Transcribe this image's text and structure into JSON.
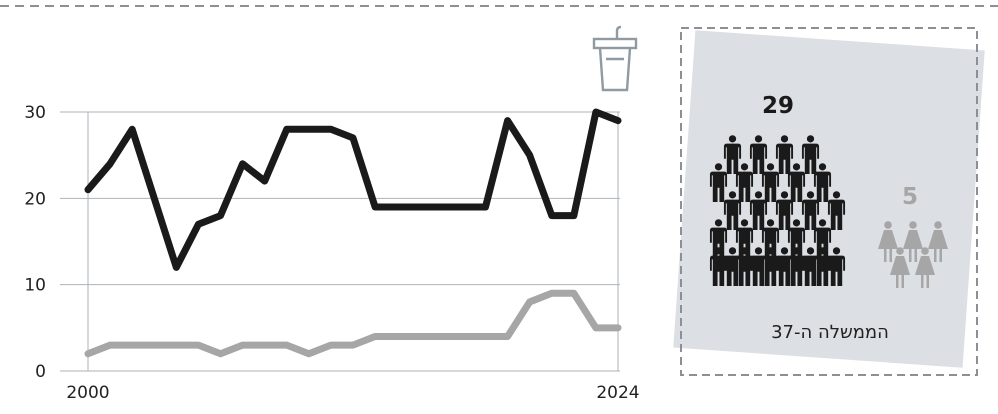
{
  "chart_data": {
    "type": "line",
    "x": [
      2000,
      2001,
      2002,
      2003,
      2004,
      2005,
      2006,
      2007,
      2008,
      2009,
      2010,
      2011,
      2012,
      2013,
      2014,
      2015,
      2016,
      2017,
      2018,
      2019,
      2020,
      2021,
      2022,
      2023,
      2024
    ],
    "series": [
      {
        "color": "#1a1a1a",
        "values": [
          21,
          24,
          28,
          20,
          12,
          17,
          18,
          24,
          22,
          28,
          28,
          28,
          27,
          19,
          19,
          19,
          19,
          19,
          19,
          29,
          25,
          18,
          18,
          30,
          29
        ]
      },
      {
        "color": "#a6a6a6",
        "values": [
          2,
          3,
          3,
          3,
          3,
          3,
          2,
          3,
          3,
          3,
          2,
          3,
          3,
          4,
          4,
          4,
          4,
          4,
          4,
          4,
          8,
          9,
          9,
          5,
          5
        ]
      }
    ],
    "ylim": [
      0,
      30
    ],
    "yticks": [
      "0",
      "10",
      "20",
      "30"
    ],
    "xtick_labels": [
      "2000",
      "2024"
    ],
    "grid": true
  },
  "government": {
    "label": "הממשלה ה-37",
    "men_count": "29",
    "women_count": "5",
    "men_color": "#1a1a1a",
    "women_color": "#a6a6a6",
    "panel_color": "#dcdfe3"
  },
  "icons": {
    "podium": "podium-icon",
    "man": "man-icon",
    "woman": "woman-icon"
  }
}
